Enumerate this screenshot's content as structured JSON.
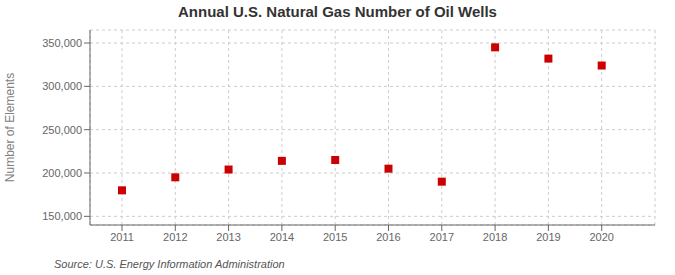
{
  "chart_data": {
    "type": "scatter",
    "title": "Annual U.S. Natural Gas Number of Oil Wells",
    "ylabel": "Number of Elements",
    "annotations": [
      "Source: U.S. Energy Information Administration"
    ],
    "x": [
      2011,
      2012,
      2013,
      2014,
      2015,
      2016,
      2017,
      2018,
      2019,
      2020
    ],
    "values": [
      180000,
      195000,
      204000,
      214000,
      215000,
      205000,
      190000,
      345000,
      332000,
      324000
    ],
    "color": "#cc0000",
    "marker": "square",
    "xlim": [
      2010.4,
      2021.0
    ],
    "xticks": [
      2011,
      2012,
      2013,
      2014,
      2015,
      2016,
      2017,
      2018,
      2019,
      2020
    ],
    "ylim": [
      140000,
      365000
    ],
    "yticks": [
      {
        "value": 150000,
        "label": "150,000"
      },
      {
        "value": 200000,
        "label": "200,000"
      },
      {
        "value": 250000,
        "label": "250,000"
      },
      {
        "value": 300000,
        "label": "300,000"
      },
      {
        "value": 350000,
        "label": "350,000"
      }
    ],
    "grid": true
  }
}
